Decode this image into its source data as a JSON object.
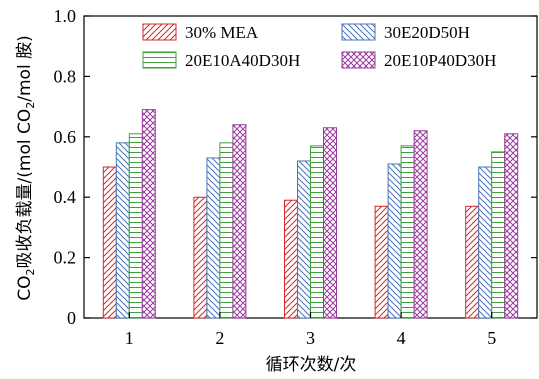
{
  "chart_data": {
    "type": "bar",
    "title": "",
    "xlabel": "循环次数/次",
    "ylabel_parts": {
      "co": "CO",
      "sub1": "2",
      "mid": "吸收负载量/(mol CO",
      "sub2": "2",
      "end": "/mol 胺)"
    },
    "categories": [
      "1",
      "2",
      "3",
      "4",
      "5"
    ],
    "ylim": [
      0,
      1.0
    ],
    "yticks": [
      "0",
      "0.2",
      "0.4",
      "0.6",
      "0.8",
      "1.0"
    ],
    "legend_position": "top",
    "series": [
      {
        "name": "30% MEA",
        "color": "#d62728",
        "pattern": "diag-right",
        "values": [
          0.5,
          0.4,
          0.39,
          0.37,
          0.37
        ]
      },
      {
        "name": "30E20D50H",
        "color": "#4a74b8",
        "pattern": "diag-left",
        "values": [
          0.58,
          0.53,
          0.52,
          0.51,
          0.5
        ]
      },
      {
        "name": "20E10A40D30H",
        "color": "#3aa335",
        "pattern": "horizontal",
        "values": [
          0.61,
          0.58,
          0.57,
          0.57,
          0.55
        ]
      },
      {
        "name": "20E10P40D30H",
        "color": "#9a3c9c",
        "pattern": "crosshatch",
        "values": [
          0.69,
          0.64,
          0.63,
          0.62,
          0.61
        ]
      }
    ]
  }
}
